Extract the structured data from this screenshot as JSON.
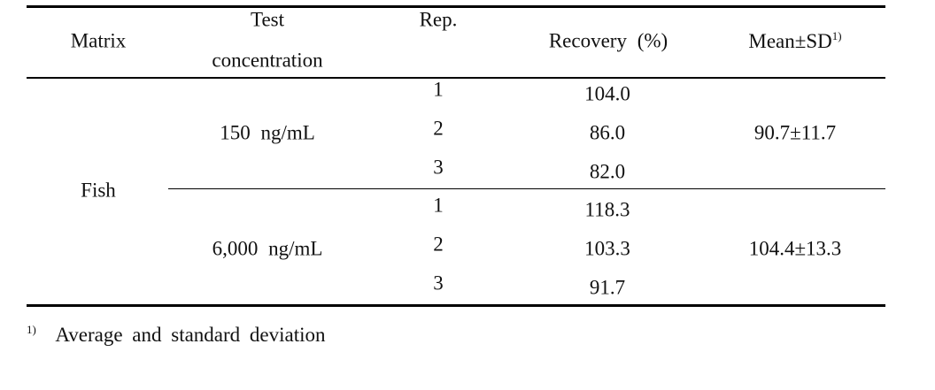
{
  "table": {
    "header": {
      "matrix": "Matrix",
      "concentration": [
        "Test",
        "concentration"
      ],
      "rep": "Rep.",
      "recovery": "Recovery (%)",
      "mean_sd": "Mean±SD",
      "mean_sd_note": "1)"
    },
    "matrix": "Fish",
    "groups": [
      {
        "concentration": "150 ng/mL",
        "reps": [
          "1",
          "2",
          "3"
        ],
        "recovery": [
          "104.0",
          "86.0",
          "82.0"
        ],
        "mean_sd": "90.7±11.7"
      },
      {
        "concentration": "6,000 ng/mL",
        "reps": [
          "1",
          "2",
          "3"
        ],
        "recovery": [
          "118.3",
          "103.3",
          "91.7"
        ],
        "mean_sd": "104.4±13.3"
      }
    ]
  },
  "footnote": {
    "mark": "1)",
    "text": "Average and standard deviation"
  }
}
